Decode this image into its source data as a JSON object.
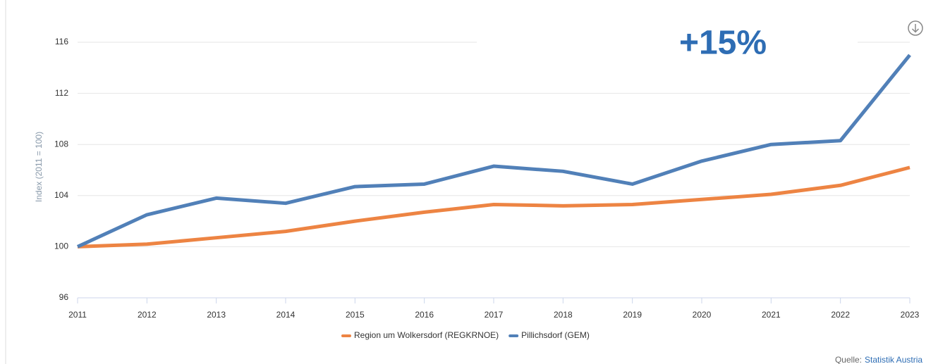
{
  "chart_data": {
    "type": "line",
    "y_label": "Index (2011 = 100)",
    "annotation": "+15%",
    "x": [
      2011,
      2012,
      2013,
      2014,
      2015,
      2016,
      2017,
      2018,
      2019,
      2020,
      2021,
      2022,
      2023
    ],
    "xlim": [
      2011,
      2023
    ],
    "xticks": [
      2011,
      2012,
      2013,
      2014,
      2015,
      2016,
      2017,
      2018,
      2019,
      2020,
      2021,
      2022,
      2023
    ],
    "ylim": [
      96,
      116
    ],
    "yticks": [
      96,
      100,
      104,
      108,
      112,
      116
    ],
    "grid": true,
    "legend": "bottom",
    "series": [
      {
        "name": "Region um Wolkersdorf (REGKRNOE)",
        "color": "#ed8443",
        "values": [
          100,
          100.2,
          100.7,
          101.2,
          102.0,
          102.7,
          103.3,
          103.2,
          103.3,
          103.7,
          104.1,
          104.8,
          106.2
        ]
      },
      {
        "name": "Pillichsdorf (GEM)",
        "color": "#5180b8",
        "values": [
          100,
          102.5,
          103.8,
          103.4,
          104.7,
          104.9,
          106.3,
          105.9,
          104.9,
          106.7,
          108.0,
          108.3,
          115.0
        ]
      }
    ],
    "source_label": "Quelle:",
    "source_link": "Statistik Austria"
  }
}
